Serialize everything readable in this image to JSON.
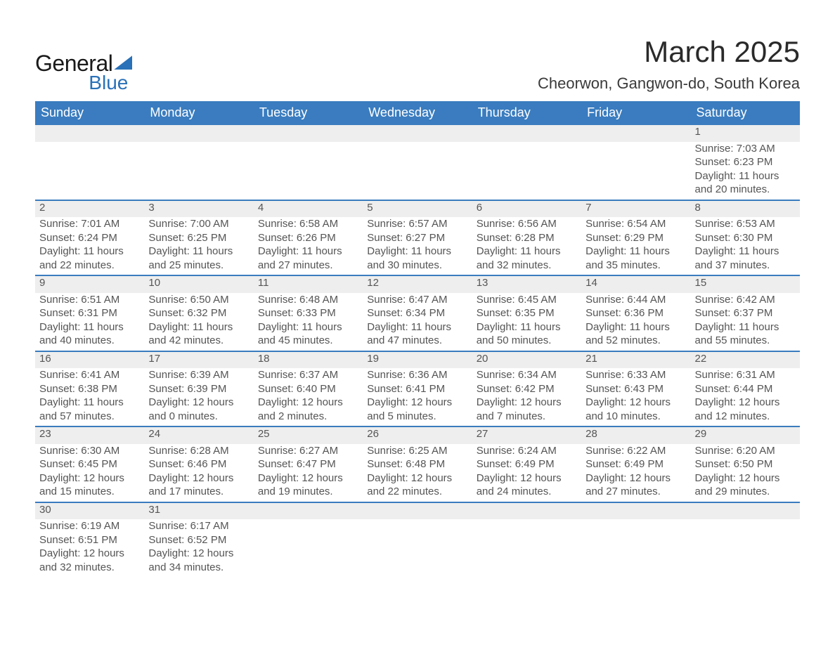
{
  "brand": {
    "name1": "General",
    "name2": "Blue",
    "accent_color": "#2971b8"
  },
  "title": "March 2025",
  "location": "Cheorwon, Gangwon-do, South Korea",
  "colors": {
    "header_bg": "#3a7cbf",
    "header_text": "#ffffff",
    "daynum_bg": "#eeeeee",
    "row_border": "#3a7cbf",
    "text": "#4a4a4a",
    "background": "#ffffff"
  },
  "fonts": {
    "title_size_pt": 32,
    "location_size_pt": 17,
    "th_size_pt": 14,
    "cell_size_pt": 11
  },
  "weekdays": [
    "Sunday",
    "Monday",
    "Tuesday",
    "Wednesday",
    "Thursday",
    "Friday",
    "Saturday"
  ],
  "weeks": [
    [
      null,
      null,
      null,
      null,
      null,
      null,
      {
        "day": "1",
        "sunrise": "Sunrise: 7:03 AM",
        "sunset": "Sunset: 6:23 PM",
        "d1": "Daylight: 11 hours",
        "d2": "and 20 minutes."
      }
    ],
    [
      {
        "day": "2",
        "sunrise": "Sunrise: 7:01 AM",
        "sunset": "Sunset: 6:24 PM",
        "d1": "Daylight: 11 hours",
        "d2": "and 22 minutes."
      },
      {
        "day": "3",
        "sunrise": "Sunrise: 7:00 AM",
        "sunset": "Sunset: 6:25 PM",
        "d1": "Daylight: 11 hours",
        "d2": "and 25 minutes."
      },
      {
        "day": "4",
        "sunrise": "Sunrise: 6:58 AM",
        "sunset": "Sunset: 6:26 PM",
        "d1": "Daylight: 11 hours",
        "d2": "and 27 minutes."
      },
      {
        "day": "5",
        "sunrise": "Sunrise: 6:57 AM",
        "sunset": "Sunset: 6:27 PM",
        "d1": "Daylight: 11 hours",
        "d2": "and 30 minutes."
      },
      {
        "day": "6",
        "sunrise": "Sunrise: 6:56 AM",
        "sunset": "Sunset: 6:28 PM",
        "d1": "Daylight: 11 hours",
        "d2": "and 32 minutes."
      },
      {
        "day": "7",
        "sunrise": "Sunrise: 6:54 AM",
        "sunset": "Sunset: 6:29 PM",
        "d1": "Daylight: 11 hours",
        "d2": "and 35 minutes."
      },
      {
        "day": "8",
        "sunrise": "Sunrise: 6:53 AM",
        "sunset": "Sunset: 6:30 PM",
        "d1": "Daylight: 11 hours",
        "d2": "and 37 minutes."
      }
    ],
    [
      {
        "day": "9",
        "sunrise": "Sunrise: 6:51 AM",
        "sunset": "Sunset: 6:31 PM",
        "d1": "Daylight: 11 hours",
        "d2": "and 40 minutes."
      },
      {
        "day": "10",
        "sunrise": "Sunrise: 6:50 AM",
        "sunset": "Sunset: 6:32 PM",
        "d1": "Daylight: 11 hours",
        "d2": "and 42 minutes."
      },
      {
        "day": "11",
        "sunrise": "Sunrise: 6:48 AM",
        "sunset": "Sunset: 6:33 PM",
        "d1": "Daylight: 11 hours",
        "d2": "and 45 minutes."
      },
      {
        "day": "12",
        "sunrise": "Sunrise: 6:47 AM",
        "sunset": "Sunset: 6:34 PM",
        "d1": "Daylight: 11 hours",
        "d2": "and 47 minutes."
      },
      {
        "day": "13",
        "sunrise": "Sunrise: 6:45 AM",
        "sunset": "Sunset: 6:35 PM",
        "d1": "Daylight: 11 hours",
        "d2": "and 50 minutes."
      },
      {
        "day": "14",
        "sunrise": "Sunrise: 6:44 AM",
        "sunset": "Sunset: 6:36 PM",
        "d1": "Daylight: 11 hours",
        "d2": "and 52 minutes."
      },
      {
        "day": "15",
        "sunrise": "Sunrise: 6:42 AM",
        "sunset": "Sunset: 6:37 PM",
        "d1": "Daylight: 11 hours",
        "d2": "and 55 minutes."
      }
    ],
    [
      {
        "day": "16",
        "sunrise": "Sunrise: 6:41 AM",
        "sunset": "Sunset: 6:38 PM",
        "d1": "Daylight: 11 hours",
        "d2": "and 57 minutes."
      },
      {
        "day": "17",
        "sunrise": "Sunrise: 6:39 AM",
        "sunset": "Sunset: 6:39 PM",
        "d1": "Daylight: 12 hours",
        "d2": "and 0 minutes."
      },
      {
        "day": "18",
        "sunrise": "Sunrise: 6:37 AM",
        "sunset": "Sunset: 6:40 PM",
        "d1": "Daylight: 12 hours",
        "d2": "and 2 minutes."
      },
      {
        "day": "19",
        "sunrise": "Sunrise: 6:36 AM",
        "sunset": "Sunset: 6:41 PM",
        "d1": "Daylight: 12 hours",
        "d2": "and 5 minutes."
      },
      {
        "day": "20",
        "sunrise": "Sunrise: 6:34 AM",
        "sunset": "Sunset: 6:42 PM",
        "d1": "Daylight: 12 hours",
        "d2": "and 7 minutes."
      },
      {
        "day": "21",
        "sunrise": "Sunrise: 6:33 AM",
        "sunset": "Sunset: 6:43 PM",
        "d1": "Daylight: 12 hours",
        "d2": "and 10 minutes."
      },
      {
        "day": "22",
        "sunrise": "Sunrise: 6:31 AM",
        "sunset": "Sunset: 6:44 PM",
        "d1": "Daylight: 12 hours",
        "d2": "and 12 minutes."
      }
    ],
    [
      {
        "day": "23",
        "sunrise": "Sunrise: 6:30 AM",
        "sunset": "Sunset: 6:45 PM",
        "d1": "Daylight: 12 hours",
        "d2": "and 15 minutes."
      },
      {
        "day": "24",
        "sunrise": "Sunrise: 6:28 AM",
        "sunset": "Sunset: 6:46 PM",
        "d1": "Daylight: 12 hours",
        "d2": "and 17 minutes."
      },
      {
        "day": "25",
        "sunrise": "Sunrise: 6:27 AM",
        "sunset": "Sunset: 6:47 PM",
        "d1": "Daylight: 12 hours",
        "d2": "and 19 minutes."
      },
      {
        "day": "26",
        "sunrise": "Sunrise: 6:25 AM",
        "sunset": "Sunset: 6:48 PM",
        "d1": "Daylight: 12 hours",
        "d2": "and 22 minutes."
      },
      {
        "day": "27",
        "sunrise": "Sunrise: 6:24 AM",
        "sunset": "Sunset: 6:49 PM",
        "d1": "Daylight: 12 hours",
        "d2": "and 24 minutes."
      },
      {
        "day": "28",
        "sunrise": "Sunrise: 6:22 AM",
        "sunset": "Sunset: 6:49 PM",
        "d1": "Daylight: 12 hours",
        "d2": "and 27 minutes."
      },
      {
        "day": "29",
        "sunrise": "Sunrise: 6:20 AM",
        "sunset": "Sunset: 6:50 PM",
        "d1": "Daylight: 12 hours",
        "d2": "and 29 minutes."
      }
    ],
    [
      {
        "day": "30",
        "sunrise": "Sunrise: 6:19 AM",
        "sunset": "Sunset: 6:51 PM",
        "d1": "Daylight: 12 hours",
        "d2": "and 32 minutes."
      },
      {
        "day": "31",
        "sunrise": "Sunrise: 6:17 AM",
        "sunset": "Sunset: 6:52 PM",
        "d1": "Daylight: 12 hours",
        "d2": "and 34 minutes."
      },
      null,
      null,
      null,
      null,
      null
    ]
  ]
}
